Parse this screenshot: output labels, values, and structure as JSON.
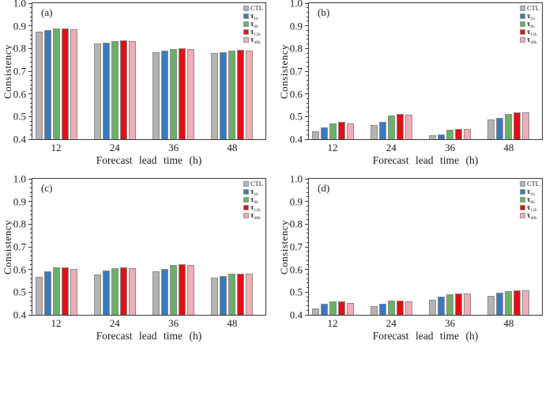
{
  "figure": {
    "background": "#ffffff",
    "ylabel": "Consistency",
    "xlabel": "Forecast  lead  time  (h)",
    "y_ticks": [
      "1.0",
      "0.9",
      "0.8",
      "0.7",
      "0.6",
      "0.5",
      "0.4"
    ],
    "x_categories": [
      "12",
      "24",
      "36",
      "48"
    ],
    "legend": [
      {
        "label": "CTL",
        "sub": ""
      },
      {
        "label": "τ",
        "sub": "1h"
      },
      {
        "label": "τ",
        "sub": "6h"
      },
      {
        "label": "τ",
        "sub": "12h"
      },
      {
        "label": "τ",
        "sub": "48h"
      }
    ],
    "series_colors": [
      "#b3b3b3",
      "#3a79bd",
      "#6ab06a",
      "#e01113",
      "#f3abb6"
    ],
    "bar_border_color": "#8c8c8c",
    "axis_color": "#3a3a3a"
  },
  "chart_data": [
    {
      "type": "bar",
      "panel": "(a)",
      "title": "",
      "xlabel": "Forecast lead time (h)",
      "ylabel": "Consistency",
      "ylim": [
        0.4,
        1.0
      ],
      "grid": false,
      "legend_position": "top-right",
      "categories": [
        "12",
        "24",
        "36",
        "48"
      ],
      "series": [
        {
          "name": "CTL",
          "values": [
            0.875,
            0.823,
            0.785,
            0.781
          ]
        },
        {
          "name": "τ1h",
          "values": [
            0.88,
            0.827,
            0.79,
            0.785
          ]
        },
        {
          "name": "τ6h",
          "values": [
            0.888,
            0.834,
            0.799,
            0.791
          ]
        },
        {
          "name": "τ12h",
          "values": [
            0.888,
            0.835,
            0.8,
            0.793
          ]
        },
        {
          "name": "τ48h",
          "values": [
            0.885,
            0.833,
            0.798,
            0.791
          ]
        }
      ]
    },
    {
      "type": "bar",
      "panel": "(b)",
      "title": "",
      "xlabel": "Forecast lead time (h)",
      "ylabel": "Consistency",
      "ylim": [
        0.4,
        1.0
      ],
      "grid": false,
      "legend_position": "top-right",
      "categories": [
        "12",
        "24",
        "36",
        "48"
      ],
      "series": [
        {
          "name": "CTL",
          "values": [
            0.435,
            0.462,
            0.416,
            0.489
          ]
        },
        {
          "name": "τ1h",
          "values": [
            0.452,
            0.476,
            0.421,
            0.493
          ]
        },
        {
          "name": "τ6h",
          "values": [
            0.47,
            0.503,
            0.441,
            0.513
          ]
        },
        {
          "name": "τ12h",
          "values": [
            0.477,
            0.51,
            0.446,
            0.519
          ]
        },
        {
          "name": "τ48h",
          "values": [
            0.471,
            0.509,
            0.446,
            0.519
          ]
        }
      ]
    },
    {
      "type": "bar",
      "panel": "(c)",
      "title": "",
      "xlabel": "Forecast lead time (h)",
      "ylabel": "Consistency",
      "ylim": [
        0.4,
        1.0
      ],
      "grid": false,
      "legend_position": "top-right",
      "categories": [
        "12",
        "24",
        "36",
        "48"
      ],
      "series": [
        {
          "name": "CTL",
          "values": [
            0.568,
            0.579,
            0.591,
            0.563
          ]
        },
        {
          "name": "τ1h",
          "values": [
            0.593,
            0.594,
            0.603,
            0.571
          ]
        },
        {
          "name": "τ6h",
          "values": [
            0.611,
            0.607,
            0.619,
            0.58
          ]
        },
        {
          "name": "τ12h",
          "values": [
            0.611,
            0.609,
            0.622,
            0.583
          ]
        },
        {
          "name": "τ48h",
          "values": [
            0.602,
            0.606,
            0.621,
            0.583
          ]
        }
      ]
    },
    {
      "type": "bar",
      "panel": "(d)",
      "title": "",
      "xlabel": "Forecast lead time (h)",
      "ylabel": "Consistency",
      "ylim": [
        0.4,
        1.0
      ],
      "grid": false,
      "legend_position": "top-right",
      "categories": [
        "12",
        "24",
        "36",
        "48"
      ],
      "series": [
        {
          "name": "CTL",
          "values": [
            0.429,
            0.437,
            0.467,
            0.485
          ]
        },
        {
          "name": "τ1h",
          "values": [
            0.449,
            0.45,
            0.479,
            0.496
          ]
        },
        {
          "name": "τ6h",
          "values": [
            0.461,
            0.462,
            0.492,
            0.504
          ]
        },
        {
          "name": "τ12h",
          "values": [
            0.461,
            0.464,
            0.495,
            0.507
          ]
        },
        {
          "name": "τ48h",
          "values": [
            0.453,
            0.461,
            0.495,
            0.507
          ]
        }
      ]
    }
  ]
}
